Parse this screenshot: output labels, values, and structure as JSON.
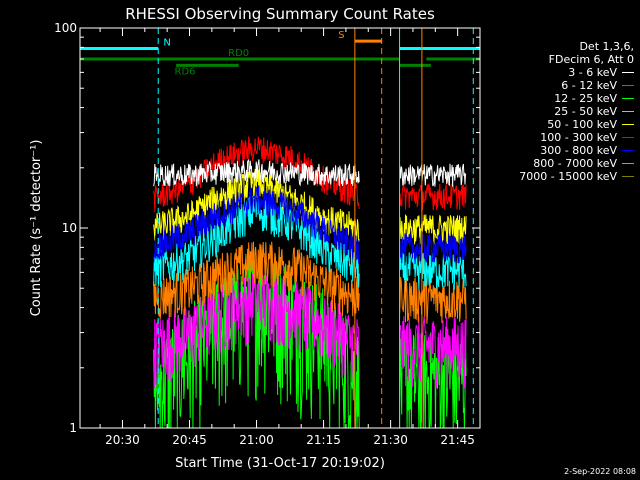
{
  "chart_data": {
    "type": "line",
    "title": "RHESSI Observing Summary Count Rates",
    "xlabel": "Start Time (31-Oct-17 20:19:02)",
    "ylabel": "Count Rate (s⁻¹ detector⁻¹)",
    "y_scale": "log",
    "ylim": [
      1,
      100
    ],
    "xlim_minutes": [
      20.5,
      75.0
    ],
    "x_ticks": [
      {
        "label": "20:30",
        "t": 30
      },
      {
        "label": "20:45",
        "t": 45
      },
      {
        "label": "21:00",
        "t": 60
      },
      {
        "label": "21:15",
        "t": 75
      },
      {
        "label": "21:30",
        "t": 90
      },
      {
        "label": "21:45",
        "t": 105
      }
    ],
    "y_ticks": [
      {
        "label": "1",
        "v": 1
      },
      {
        "label": "10",
        "v": 10
      },
      {
        "label": "100",
        "v": 100
      }
    ],
    "data_intervals": [
      [
        37,
        83
      ],
      [
        92,
        107
      ]
    ],
    "series": [
      {
        "name": "3 - 6 keV",
        "color": "#ffffff",
        "level": [
          18.5,
          18.5,
          19.0,
          19.5,
          19.0,
          18.5,
          18.5
        ],
        "noise": 0.06
      },
      {
        "name": "6 - 12 keV",
        "color": "#ff00ff",
        "level": [
          2.6,
          3.0,
          3.8,
          4.5,
          4.0,
          3.2,
          2.6
        ],
        "noise": 0.18
      },
      {
        "name": "12 - 25 keV",
        "color": "#00ff00",
        "level": [
          1.6,
          2.4,
          3.4,
          4.6,
          4.0,
          2.8,
          1.8
        ],
        "noise": 0.32
      },
      {
        "name": "25 - 50 keV",
        "color": "#00ffff",
        "level": [
          6.2,
          7.2,
          9.5,
          12.5,
          10.5,
          7.5,
          6.2
        ],
        "noise": 0.1
      },
      {
        "name": "50 - 100 keV",
        "color": "#ffff00",
        "level": [
          10.0,
          11.5,
          14.5,
          17.0,
          14.0,
          11.0,
          10.0
        ],
        "noise": 0.08
      },
      {
        "name": "100 - 300 keV",
        "color": "#ff0000",
        "level": [
          14.0,
          16.5,
          22.0,
          25.5,
          22.5,
          17.0,
          14.5
        ],
        "noise": 0.07
      },
      {
        "name": "300 - 800 keV",
        "color": "#0000ff",
        "level": [
          8.0,
          9.5,
          12.0,
          14.0,
          12.5,
          9.5,
          8.0
        ],
        "noise": 0.08
      },
      {
        "name": "800 - 7000 keV",
        "color": "#ff8000",
        "level": [
          4.5,
          5.0,
          6.0,
          7.0,
          6.5,
          5.2,
          4.5
        ],
        "noise": 0.12
      },
      {
        "name": "7000 - 15000 keV",
        "color": "#808000",
        "level": [
          1.0,
          1.0,
          1.0,
          1.0,
          1.0,
          1.0,
          1.0
        ],
        "noise": 0.0
      }
    ],
    "flag_bars": [
      {
        "label": "N",
        "color": "#00ffff",
        "v": 79,
        "segments": [
          [
            20.5,
            38
          ],
          [
            92,
            110
          ]
        ],
        "label_t": 40
      },
      {
        "label": "S",
        "color": "#ff8000",
        "v": 86,
        "segments": [
          [
            82,
            88
          ]
        ],
        "label_t": 79
      },
      {
        "label": "RD0",
        "color": "#008000",
        "v": 70,
        "segments": [
          [
            20.5,
            92
          ],
          [
            98,
            110
          ]
        ],
        "label_t": 56
      },
      {
        "label": "RD6",
        "color": "#008000",
        "v": 65,
        "segments": [
          [
            42,
            56
          ],
          [
            92,
            99
          ]
        ],
        "label_t": 44
      }
    ],
    "vertical_markers": [
      {
        "t": 38,
        "color": "#00ffff",
        "style": "dashed"
      },
      {
        "t": 92,
        "color": "#00ffff",
        "style": "solid"
      },
      {
        "t": 108.5,
        "color": "#00ffff",
        "style": "dashed"
      },
      {
        "t": 82,
        "color": "#ff8000",
        "style": "solid"
      },
      {
        "t": 88,
        "color": "#ff8000",
        "style": "dashed"
      },
      {
        "t": 97,
        "color": "#ff8000",
        "style": "solid"
      }
    ]
  },
  "legend": {
    "header": [
      "Det 1,3,6,",
      "FDecim 6, Att 0"
    ]
  },
  "timestamp": "2-Sep-2022 08:08"
}
